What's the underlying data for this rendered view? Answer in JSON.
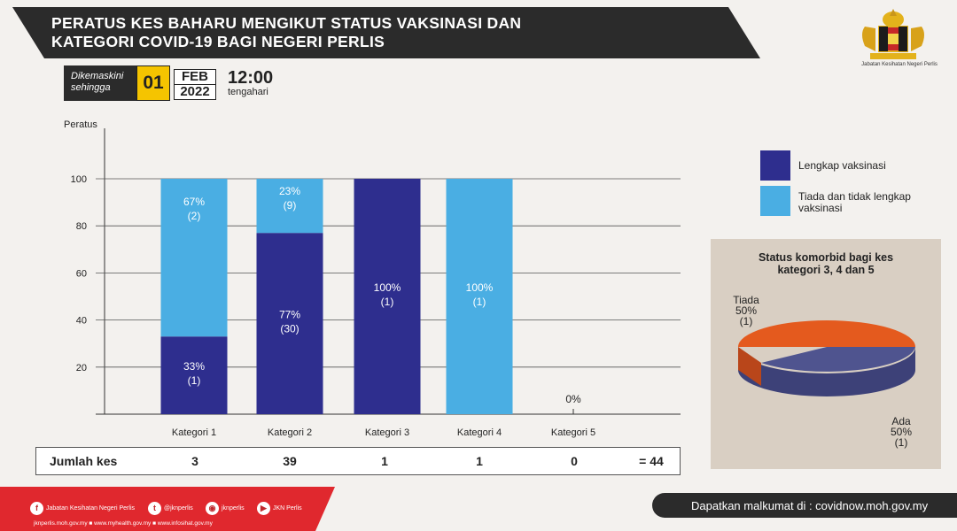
{
  "title": {
    "line1": "PERATUS KES BAHARU MENGIKUT STATUS VAKSINASI  DAN",
    "line2": "KATEGORI COVID-19 BAGI NEGERI PERLIS"
  },
  "updated": {
    "label_line1": "Dikemaskini",
    "label_line2": "sehingga",
    "day": "01",
    "month": "FEB",
    "year": "2022",
    "time": "12:00",
    "period": "tengahari"
  },
  "agency": "Jabatan Kesihatan Negeri Perlis",
  "colors": {
    "vaccinated": "#2e2e8e",
    "not_vaccinated": "#4aaee3",
    "pie_tiada": "#e45a1e",
    "pie_ada": "#4f548f",
    "banner": "#2b2b2b",
    "footer_red": "#e0282e"
  },
  "chart_data": [
    {
      "type": "bar",
      "stacked": true,
      "ylabel": "Peratus",
      "ylim": [
        0,
        100
      ],
      "yticks": [
        "20",
        "40",
        "60",
        "80",
        "100"
      ],
      "categories": [
        "Kategori 1",
        "Kategori 2",
        "Kategori 3",
        "Kategori 4",
        "Kategori 5"
      ],
      "series": [
        {
          "name": "Lengkap vaksinasi",
          "values": [
            33,
            77,
            100,
            0,
            0
          ],
          "labels": [
            [
              "33%",
              "(1)"
            ],
            [
              "77%",
              "(30)"
            ],
            [
              "100%",
              "(1)"
            ],
            null,
            null
          ]
        },
        {
          "name": "Tiada dan tidak lengkap vaksinasi",
          "values": [
            67,
            23,
            0,
            100,
            0
          ],
          "labels": [
            [
              "67%",
              "(2)"
            ],
            [
              "23%",
              "(9)"
            ],
            null,
            [
              "100%",
              "(1)"
            ],
            null
          ]
        }
      ],
      "zero_label": {
        "category": "Kategori 5",
        "text": "0%"
      },
      "legend_position": "right",
      "grid": true
    },
    {
      "type": "pie",
      "title_line1": "Status komorbid bagi kes",
      "title_line2": "kategori 3, 4 dan 5",
      "slices": [
        {
          "name": "Tiada",
          "value": 50,
          "pct": "50%",
          "count": "(1)"
        },
        {
          "name": "Ada",
          "value": 50,
          "pct": "50%",
          "count": "(1)"
        }
      ]
    }
  ],
  "counts": {
    "label": "Jumlah kes",
    "values": [
      "3",
      "39",
      "1",
      "1",
      "0"
    ],
    "total": "= 44"
  },
  "footer": {
    "items": [
      {
        "icon": "facebook-icon",
        "text": "Jabatan Kesihatan Negeri Perlis"
      },
      {
        "icon": "twitter-icon",
        "text": "@jknperlis"
      },
      {
        "icon": "instagram-icon",
        "text": "jknperlis"
      },
      {
        "icon": "youtube-icon",
        "text": "JKN Perlis"
      }
    ],
    "urls": "jknperlis.moh.gov.my ■ www.myhealth.gov.my ■ www.infosihat.gov.my",
    "right_text": "Dapatkan malkumat di : covidnow.moh.gov.my"
  }
}
